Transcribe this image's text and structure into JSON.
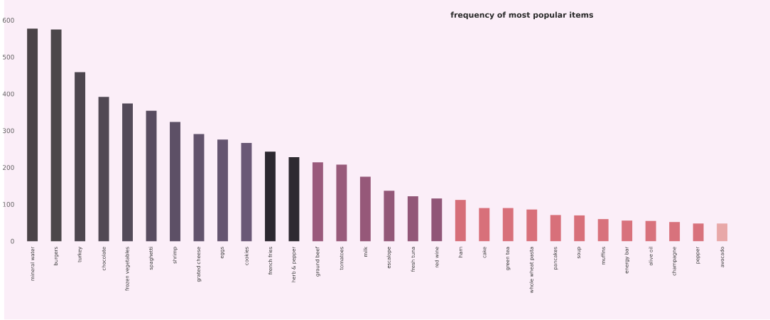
{
  "chart_data": {
    "type": "bar",
    "title": "frequency of most popular items",
    "categories": [
      "mineral water",
      "burgers",
      "turkey",
      "chocolate",
      "frozen vegetables",
      "spaghetti",
      "shrimp",
      "grated cheese",
      "eggs",
      "cookies",
      "french fries",
      "herb & pepper",
      "ground beef",
      "tomatoes",
      "milk",
      "escalope",
      "fresh tuna",
      "red wine",
      "ham",
      "cake",
      "green tea",
      "whole wheat pasta",
      "pancakes",
      "soup",
      "muffins",
      "energy bar",
      "olive oil",
      "champagne",
      "pepper",
      "avocado"
    ],
    "values": [
      577,
      575,
      459,
      392,
      374,
      354,
      324,
      291,
      276,
      267,
      243,
      228,
      214,
      208,
      175,
      137,
      122,
      116,
      112,
      90,
      90,
      86,
      71,
      70,
      60,
      56,
      55,
      52,
      48,
      48
    ],
    "colors": [
      "#4a4347",
      "#4b474a",
      "#4d464f",
      "#514954",
      "#544b5a",
      "#584c60",
      "#5d5066",
      "#62536c",
      "#655570",
      "#6a5876",
      "#2c2830",
      "#2e2a31",
      "#9a5a7c",
      "#985a7a",
      "#965879",
      "#935878",
      "#925778",
      "#905677",
      "#d66e78",
      "#d8707a",
      "#d8707a",
      "#d8707a",
      "#d8707a",
      "#d8707a",
      "#d8727c",
      "#d8727c",
      "#d8727c",
      "#d8727c",
      "#d8727c",
      "#e8a8a8"
    ],
    "ylim": [
      0,
      600
    ],
    "yticks": [
      0,
      100,
      200,
      300,
      400,
      500,
      600
    ],
    "grid": false
  }
}
